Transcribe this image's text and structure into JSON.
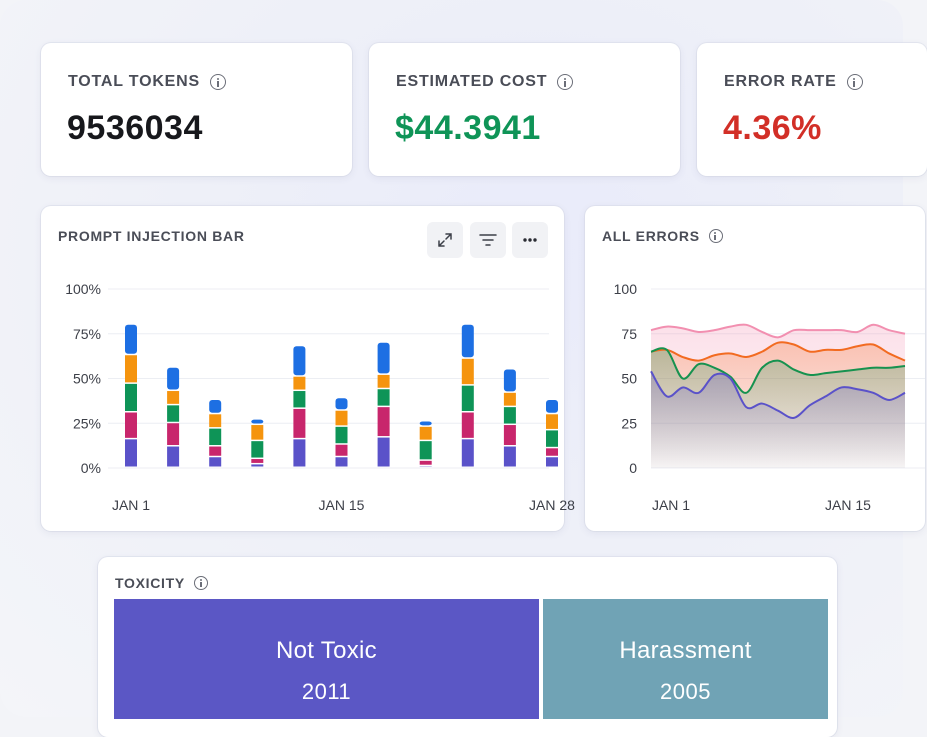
{
  "kpis": {
    "total_tokens": {
      "label": "TOTAL TOKENS",
      "value": "9536034"
    },
    "estimated_cost": {
      "label": "ESTIMATED COST",
      "value": "$44.3941"
    },
    "error_rate": {
      "label": "ERROR RATE",
      "value": "4.36%"
    }
  },
  "colors": {
    "cost_green": "#0f9457",
    "error_red": "#d22f27",
    "series_blue": "#1d6fe3",
    "series_orange": "#f5940e",
    "series_green": "#0e9457",
    "series_magenta": "#c8266c",
    "series_purple": "#5a52c9",
    "tox_purple": "#5b57c5",
    "tox_teal": "#70a3b5"
  },
  "prompt_injection": {
    "title": "PROMPT INJECTION BAR",
    "toolbar": {
      "expand_icon": "expand-icon",
      "filter_icon": "filter-icon",
      "more_icon": "more-icon"
    },
    "chart_data": {
      "type": "bar",
      "stacked": true,
      "y_tick_labels": [
        "0%",
        "25%",
        "50%",
        "75%",
        "100%"
      ],
      "ylim": [
        0,
        100
      ],
      "x_tick_labels": [
        "JAN 1",
        "JAN 15",
        "JAN 28"
      ],
      "grid": true,
      "series": [
        {
          "color": "#5a52c9",
          "values": [
            16,
            12,
            6,
            2,
            16,
            6,
            17,
            1,
            16,
            12,
            6
          ]
        },
        {
          "color": "#c8266c",
          "values": [
            15,
            13,
            6,
            3,
            17,
            7,
            17,
            3,
            15,
            12,
            5
          ]
        },
        {
          "color": "#0e9457",
          "values": [
            16,
            10,
            10,
            10,
            10,
            10,
            10,
            11,
            15,
            10,
            10
          ]
        },
        {
          "color": "#f5940e",
          "values": [
            16,
            8,
            8,
            9,
            8,
            9,
            8,
            8,
            15,
            8,
            9
          ]
        },
        {
          "color": "#1d6fe3",
          "values": [
            17,
            13,
            8,
            3,
            17,
            7,
            18,
            3,
            19,
            13,
            8
          ]
        }
      ]
    }
  },
  "all_errors": {
    "title": "ALL ERRORS",
    "chart_data": {
      "type": "area",
      "y_tick_labels": [
        "0",
        "25",
        "50",
        "75",
        "100"
      ],
      "ylim": [
        0,
        100
      ],
      "x_tick_labels": [
        "JAN 1",
        "JAN 15"
      ],
      "grid": true,
      "series": [
        {
          "color": "#f28fb0",
          "values": [
            77,
            79,
            78,
            76,
            77,
            79,
            80,
            76,
            73,
            77,
            77,
            77,
            77,
            76,
            80,
            77,
            75
          ]
        },
        {
          "color": "#f26b21",
          "values": [
            65,
            66,
            62,
            60,
            63,
            64,
            62,
            65,
            70,
            69,
            65,
            66,
            66,
            68,
            69,
            64,
            60
          ]
        },
        {
          "color": "#16924f",
          "values": [
            65,
            66,
            50,
            58,
            56,
            51,
            42,
            56,
            60,
            55,
            52,
            53,
            54,
            55,
            56,
            56,
            57
          ]
        },
        {
          "color": "#5a52c9",
          "values": [
            54,
            40,
            45,
            42,
            52,
            50,
            34,
            36,
            32,
            28,
            35,
            40,
            45,
            44,
            42,
            38,
            42
          ]
        }
      ]
    }
  },
  "toxicity": {
    "title": "TOXICITY",
    "cells": [
      {
        "name": "Not Toxic",
        "count": "2011",
        "color": "#5b57c5"
      },
      {
        "name": "Harassment",
        "count": "2005",
        "color": "#70a3b5"
      }
    ]
  }
}
